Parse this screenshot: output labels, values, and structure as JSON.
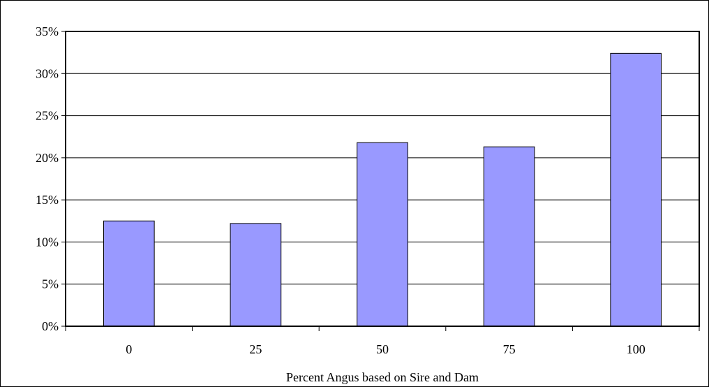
{
  "chart_data": {
    "type": "bar",
    "title": "",
    "xlabel": "Percent Angus based on Sire and Dam",
    "ylabel": "",
    "categories": [
      "0",
      "25",
      "50",
      "75",
      "100"
    ],
    "values": [
      12.5,
      12.2,
      21.8,
      21.3,
      32.4
    ],
    "value_format": "percent",
    "ylim": [
      0,
      35
    ],
    "yticks": [
      0,
      5,
      10,
      15,
      20,
      25,
      30,
      35
    ],
    "ytick_labels": [
      "0%",
      "5%",
      "10%",
      "15%",
      "20%",
      "25%",
      "30%",
      "35%"
    ],
    "grid": true,
    "legend": "none",
    "bar_color": "#9999ff",
    "bar_edge_color": "#000000"
  }
}
